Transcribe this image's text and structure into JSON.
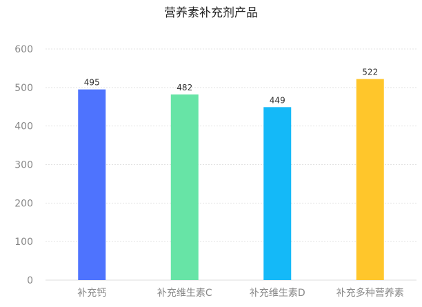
{
  "chart_data": {
    "type": "bar",
    "title": "营养素补充剂产品",
    "categories": [
      "补充钙",
      "补充维生素C",
      "补充维生素D",
      "补充多种营养素"
    ],
    "values": [
      495,
      482,
      449,
      522
    ],
    "colors": [
      "#4e73fe",
      "#67e4a6",
      "#14b9f8",
      "#ffc62b"
    ],
    "ylim": [
      0,
      600
    ],
    "yticks": [
      0,
      100,
      200,
      300,
      400,
      500,
      600
    ],
    "grid": true,
    "data_labels": true,
    "xlabel": "",
    "ylabel": ""
  }
}
